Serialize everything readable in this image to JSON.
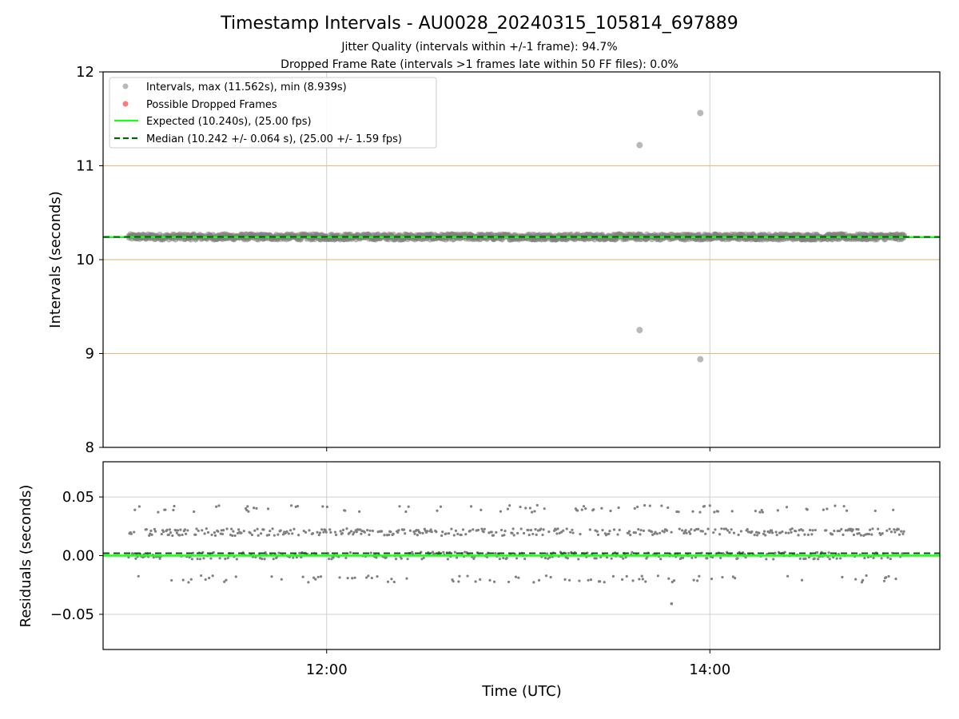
{
  "figure": {
    "title": "Timestamp Intervals - AU0028_20240315_105814_697889",
    "subtitle_1": "Jitter Quality (intervals within +/-1 frame): 94.7%",
    "subtitle_2": "Dropped Frame Rate (intervals >1 frames late within 50 FF files): 0.0%"
  },
  "chart_data": [
    {
      "type": "scatter",
      "ylabel": "Intervals (seconds)",
      "xlabel": "",
      "xlim": [
        "10:50",
        "15:12"
      ],
      "ylim": [
        8,
        12
      ],
      "x_ticks": [
        "12:00",
        "14:00"
      ],
      "y_ticks": [
        "8",
        "9",
        "10",
        "11",
        "12"
      ],
      "grid": true,
      "legend_position": "top-left",
      "reference_lines": [
        9,
        10,
        11
      ],
      "series": [
        {
          "name": "Intervals, max (11.562s), min (8.939s)",
          "color": "#808080",
          "marker": "circle",
          "pattern": "dense band at ~10.24 s every ~10.24 s from 10:58 to 15:01",
          "band_center": 10.242,
          "points": [
            {
              "x": "13:38",
              "y": 11.22
            },
            {
              "x": "13:38",
              "y": 9.25
            },
            {
              "x": "13:57",
              "y": 11.562
            },
            {
              "x": "13:57",
              "y": 8.939
            }
          ]
        },
        {
          "name": "Possible Dropped Frames",
          "color": "#ff6b6b",
          "marker": "circle",
          "points": []
        },
        {
          "name": "Expected (10.240s), (25.00 fps)",
          "color": "#1aff1a",
          "line": "solid",
          "y": 10.24
        },
        {
          "name": "Median (10.242 +/- 0.064 s), (25.00 +/- 1.59 fps)",
          "color": "#006400",
          "line": "dashed",
          "y": 10.242
        }
      ]
    },
    {
      "type": "scatter",
      "ylabel": "Residuals (seconds)",
      "xlabel": "Time (UTC)",
      "xlim": [
        "10:50",
        "15:12"
      ],
      "ylim": [
        -0.08,
        0.08
      ],
      "x_ticks": [
        "12:00",
        "14:00"
      ],
      "y_ticks": [
        "0.05",
        "0.00",
        "−0.05"
      ],
      "grid": true,
      "series": [
        {
          "name": "",
          "color": "#808080",
          "marker": "circle",
          "levels": [
            -0.02,
            0.0,
            0.02,
            0.04
          ],
          "outliers": [
            {
              "x": "13:48",
              "y": -0.041
            }
          ]
        },
        {
          "name": "",
          "color": "#1aff1a",
          "line": "solid",
          "y": 0.0
        },
        {
          "name": "",
          "color": "#006400",
          "line": "dashed",
          "y": 0.002
        }
      ]
    }
  ]
}
